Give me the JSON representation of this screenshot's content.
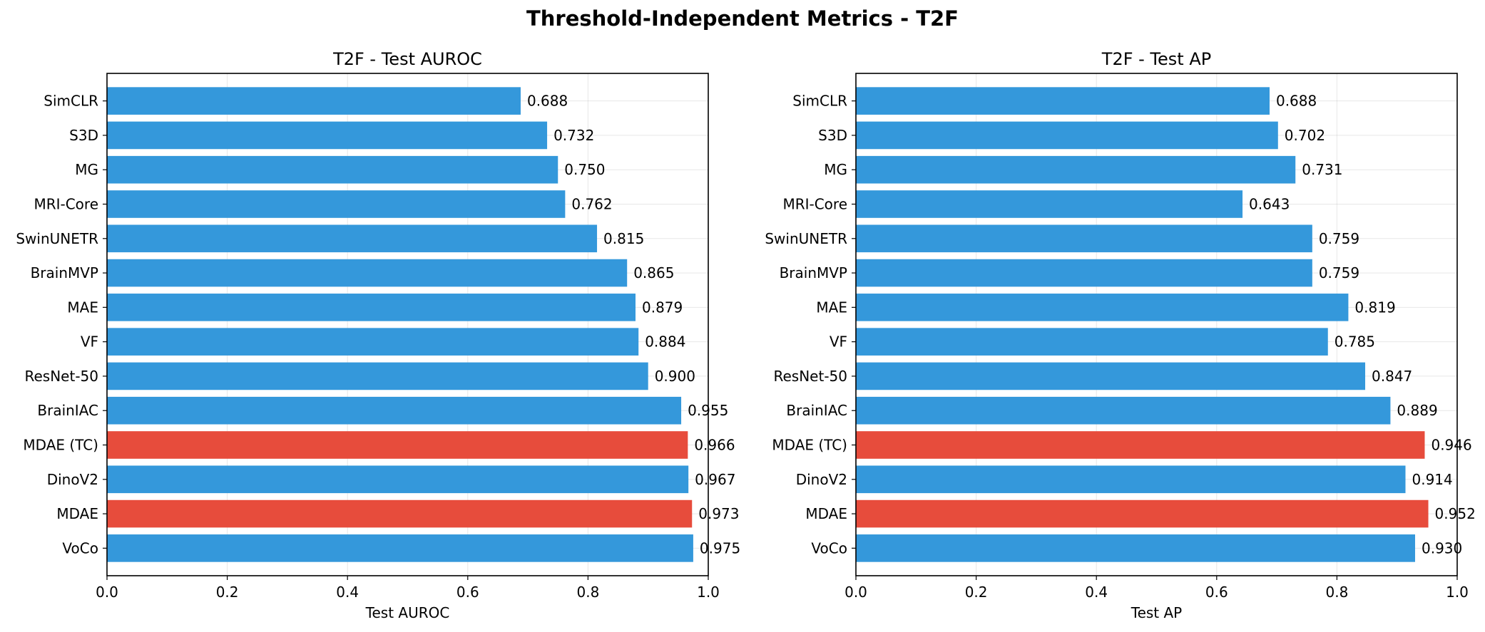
{
  "figure_title": "Threshold-Independent Metrics - T2F",
  "colors": {
    "default": "#3498db",
    "highlight": "#e74c3c"
  },
  "chart_data": [
    {
      "type": "bar",
      "orientation": "horizontal",
      "title": "T2F - Test AUROC",
      "xlabel": "Test AUROC",
      "ylabel": "",
      "xlim": [
        0.0,
        1.0
      ],
      "xticks": [
        "0.0",
        "0.2",
        "0.4",
        "0.6",
        "0.8",
        "1.0"
      ],
      "grid": true,
      "categories": [
        "SimCLR",
        "S3D",
        "MG",
        "MRI-Core",
        "SwinUNETR",
        "BrainMVP",
        "MAE",
        "VF",
        "ResNet-50",
        "BrainIAC",
        "MDAE (TC)",
        "DinoV2",
        "MDAE",
        "VoCo"
      ],
      "values": [
        0.688,
        0.732,
        0.75,
        0.762,
        0.815,
        0.865,
        0.879,
        0.884,
        0.9,
        0.955,
        0.966,
        0.967,
        0.973,
        0.975
      ],
      "value_labels": [
        "0.688",
        "0.732",
        "0.750",
        "0.762",
        "0.815",
        "0.865",
        "0.879",
        "0.884",
        "0.900",
        "0.955",
        "0.966",
        "0.967",
        "0.973",
        "0.975"
      ],
      "highlighted": [
        "MDAE (TC)",
        "MDAE"
      ]
    },
    {
      "type": "bar",
      "orientation": "horizontal",
      "title": "T2F - Test AP",
      "xlabel": "Test AP",
      "ylabel": "",
      "xlim": [
        0.0,
        1.0
      ],
      "xticks": [
        "0.0",
        "0.2",
        "0.4",
        "0.6",
        "0.8",
        "1.0"
      ],
      "grid": true,
      "categories": [
        "SimCLR",
        "S3D",
        "MG",
        "MRI-Core",
        "SwinUNETR",
        "BrainMVP",
        "MAE",
        "VF",
        "ResNet-50",
        "BrainIAC",
        "MDAE (TC)",
        "DinoV2",
        "MDAE",
        "VoCo"
      ],
      "values": [
        0.688,
        0.702,
        0.731,
        0.643,
        0.759,
        0.759,
        0.819,
        0.785,
        0.847,
        0.889,
        0.946,
        0.914,
        0.952,
        0.93
      ],
      "value_labels": [
        "0.688",
        "0.702",
        "0.731",
        "0.643",
        "0.759",
        "0.759",
        "0.819",
        "0.785",
        "0.847",
        "0.889",
        "0.946",
        "0.914",
        "0.952",
        "0.930"
      ],
      "highlighted": [
        "MDAE (TC)",
        "MDAE"
      ]
    }
  ]
}
